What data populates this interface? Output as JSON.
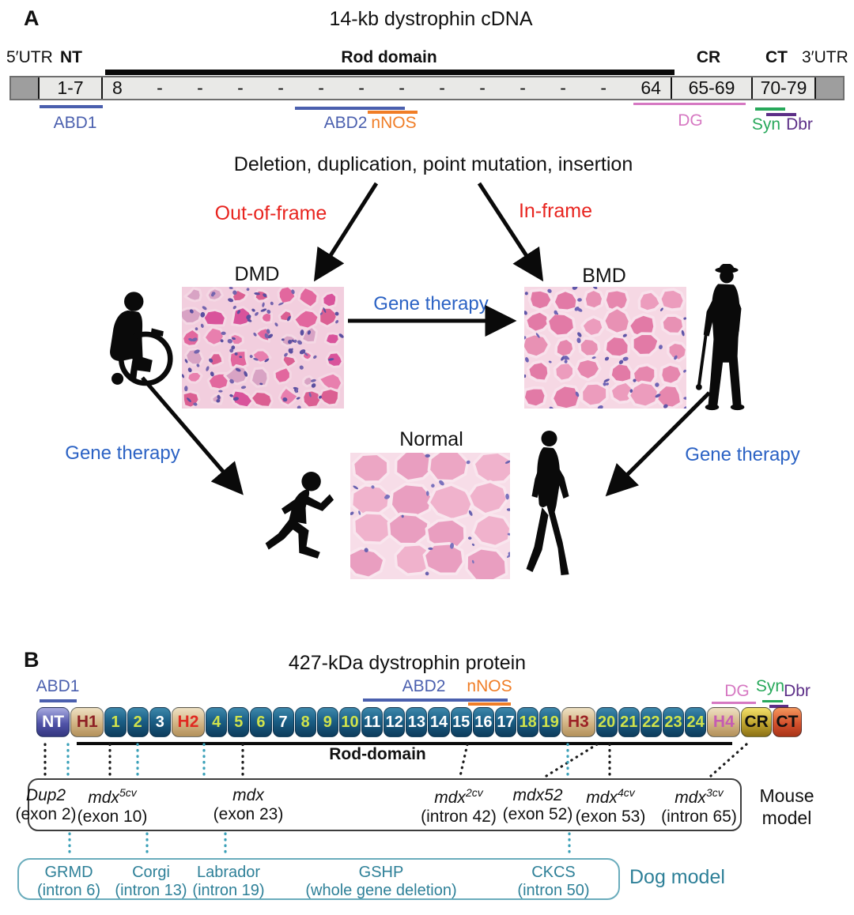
{
  "colors": {
    "abd_blue": "#4a5fae",
    "nnos_orange": "#f07d26",
    "dg_pink": "#d678c2",
    "syn_green": "#27a85a",
    "dbr_purple": "#5c2e87",
    "frame_red": "#e8241f",
    "therapy_blue": "#2b62c4",
    "dog_teal": "#2e8098",
    "dot_teal": "#3aa0b8"
  },
  "panel_a": {
    "label": "A",
    "title": "14-kb dystrophin cDNA",
    "header": {
      "utr5": "5′UTR",
      "nt": "NT",
      "rod": "Rod domain",
      "cr": "CR",
      "ct": "CT",
      "utr3": "3′UTR"
    },
    "bar": {
      "nt_cell": "1-7",
      "rod_first": "8",
      "rod_dashes": [
        "-",
        "-",
        "-",
        "-",
        "-",
        "-",
        "-",
        "-",
        "-",
        "-",
        "-",
        "-"
      ],
      "rod_last": "64",
      "cr_cell": "65-69",
      "ct_cell": "70-79"
    },
    "annotations": {
      "abd1": "ABD1",
      "abd2": "ABD2",
      "nnos": "nNOS",
      "dg": "DG",
      "syn": "Syn",
      "dbr": "Dbr"
    },
    "flow": {
      "mutations": "Deletion, duplication, point mutation, insertion",
      "out_of_frame": "Out-of-frame",
      "in_frame": "In-frame",
      "dmd": "DMD",
      "bmd": "BMD",
      "normal": "Normal",
      "gt_center": "Gene therapy",
      "gt_left": "Gene therapy",
      "gt_right": "Gene therapy"
    }
  },
  "panel_b": {
    "label": "B",
    "title": "427-kDa dystrophin protein",
    "annotations": {
      "abd1": "ABD1",
      "abd2": "ABD2",
      "nnos": "nNOS",
      "dg": "DG",
      "syn": "Syn",
      "dbr": "Dbr"
    },
    "rod_domain_label": "Rod-domain",
    "domains": [
      {
        "label": "NT",
        "kind": "nt"
      },
      {
        "label": "H1",
        "kind": "hinge",
        "text_color": "#8e2125"
      },
      {
        "label": "1",
        "kind": "repeat",
        "text_color": "#cfe24c"
      },
      {
        "label": "2",
        "kind": "repeat",
        "text_color": "#cfe24c"
      },
      {
        "label": "3",
        "kind": "repeat",
        "text_color": "#ffffff"
      },
      {
        "label": "H2",
        "kind": "hinge",
        "text_color": "#e02a22"
      },
      {
        "label": "4",
        "kind": "repeat",
        "text_color": "#cfe24c"
      },
      {
        "label": "5",
        "kind": "repeat",
        "text_color": "#cfe24c"
      },
      {
        "label": "6",
        "kind": "repeat",
        "text_color": "#cfe24c"
      },
      {
        "label": "7",
        "kind": "repeat",
        "text_color": "#ffffff"
      },
      {
        "label": "8",
        "kind": "repeat",
        "text_color": "#cfe24c"
      },
      {
        "label": "9",
        "kind": "repeat",
        "text_color": "#cfe24c"
      },
      {
        "label": "10",
        "kind": "repeat",
        "text_color": "#cfe24c"
      },
      {
        "label": "11",
        "kind": "repeat",
        "text_color": "#ffffff"
      },
      {
        "label": "12",
        "kind": "repeat",
        "text_color": "#ffffff"
      },
      {
        "label": "13",
        "kind": "repeat",
        "text_color": "#ffffff"
      },
      {
        "label": "14",
        "kind": "repeat",
        "text_color": "#ffffff"
      },
      {
        "label": "15",
        "kind": "repeat",
        "text_color": "#ffffff"
      },
      {
        "label": "16",
        "kind": "repeat",
        "text_color": "#ffffff"
      },
      {
        "label": "17",
        "kind": "repeat",
        "text_color": "#ffffff"
      },
      {
        "label": "18",
        "kind": "repeat",
        "text_color": "#cfe24c"
      },
      {
        "label": "19",
        "kind": "repeat",
        "text_color": "#cfe24c"
      },
      {
        "label": "H3",
        "kind": "hinge",
        "text_color": "#9c2326"
      },
      {
        "label": "20",
        "kind": "repeat",
        "text_color": "#cfe24c"
      },
      {
        "label": "21",
        "kind": "repeat",
        "text_color": "#cfe24c"
      },
      {
        "label": "22",
        "kind": "repeat",
        "text_color": "#cfe24c"
      },
      {
        "label": "23",
        "kind": "repeat",
        "text_color": "#cfe24c"
      },
      {
        "label": "24",
        "kind": "repeat",
        "text_color": "#cfe24c"
      },
      {
        "label": "H4",
        "kind": "hinge",
        "text_color": "#c55cb2"
      },
      {
        "label": "CR",
        "kind": "cr"
      },
      {
        "label": "CT",
        "kind": "ct"
      }
    ],
    "mouse_model": {
      "caption": "Mouse model",
      "entries": [
        {
          "name": "Dup2",
          "sup": "",
          "location": "(exon 2)"
        },
        {
          "name": "mdx",
          "sup": "5cv",
          "location": "(exon 10)"
        },
        {
          "name": "mdx",
          "sup": "",
          "location": "(exon 23)"
        },
        {
          "name": "mdx",
          "sup": "2cv",
          "location": "(intron 42)"
        },
        {
          "name": "mdx52",
          "sup": "",
          "location": "(exon 52)"
        },
        {
          "name": "mdx",
          "sup": "4cv",
          "location": "(exon 53)"
        },
        {
          "name": "mdx",
          "sup": "3cv",
          "location": "(intron 65)"
        }
      ]
    },
    "dog_model": {
      "caption": "Dog model",
      "entries": [
        {
          "name": "GRMD",
          "location": "(intron 6)"
        },
        {
          "name": "Corgi",
          "location": "(intron 13)"
        },
        {
          "name": "Labrador",
          "location": "(intron 19)"
        },
        {
          "name": "GSHP",
          "location": "(whole gene deletion)"
        },
        {
          "name": "CKCS",
          "location": "(intron 50)"
        }
      ]
    }
  }
}
